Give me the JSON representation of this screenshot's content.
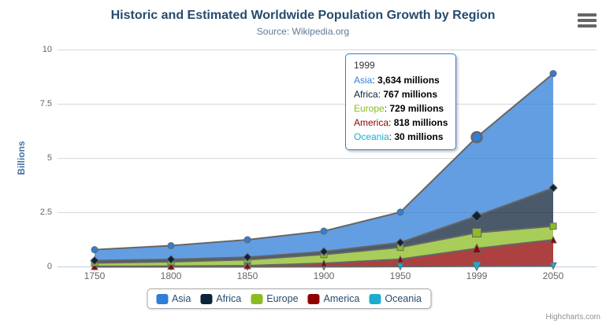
{
  "header": {
    "title": "Historic and Estimated Worldwide Population Growth by Region",
    "subtitle": "Source: Wikipedia.org"
  },
  "palette": {
    "asia": "#2F7ED8",
    "africa": "#0D233A",
    "europe": "#8BBC21",
    "america": "#910000",
    "oceania": "#1AADCE",
    "series_line": "#666666",
    "grid_line": "#D8D8D8",
    "axis_line": "#C0D0E0",
    "title_color": "#274B6D",
    "subtitle_color": "#5D7B96",
    "yaxis_title_color": "#4572A7"
  },
  "yaxis": {
    "title": "Billions",
    "labels": [
      "10",
      "7.5",
      "5",
      "2.5",
      "0"
    ]
  },
  "xaxis": {
    "labels": [
      "1750",
      "1800",
      "1850",
      "1900",
      "1950",
      "1999",
      "2050"
    ]
  },
  "legend": {
    "items": [
      {
        "label": "Asia",
        "color": "#2F7ED8"
      },
      {
        "label": "Africa",
        "color": "#0D233A"
      },
      {
        "label": "Europe",
        "color": "#8BBC21"
      },
      {
        "label": "America",
        "color": "#910000"
      },
      {
        "label": "Oceania",
        "color": "#1AADCE"
      }
    ]
  },
  "tooltip": {
    "header": "1999",
    "sep": ": ",
    "border_color": "#2F7ED8",
    "rows": [
      {
        "name": "Asia",
        "color": "#2F7ED8",
        "value": "3,634 millions"
      },
      {
        "name": "Africa",
        "color": "#0D233A",
        "value": "767 millions"
      },
      {
        "name": "Europe",
        "color": "#8BBC21",
        "value": "729 millions"
      },
      {
        "name": "America",
        "color": "#910000",
        "value": "818 millions"
      },
      {
        "name": "Oceania",
        "color": "#1AADCE",
        "value": "30 millions"
      }
    ]
  },
  "credits": {
    "label": "Highcharts.com"
  },
  "chart_data": {
    "type": "area",
    "stacking": "normal",
    "title": "Historic and Estimated Worldwide Population Growth by Region",
    "subtitle": "Source: Wikipedia.org",
    "categories": [
      "1750",
      "1800",
      "1850",
      "1900",
      "1950",
      "1999",
      "2050"
    ],
    "value_unit": "millions",
    "ylabel": "Billions",
    "ylim": [
      0,
      10
    ],
    "yticks": [
      0,
      2.5,
      5,
      7.5,
      10
    ],
    "grid": "horizontal",
    "legend_position": "bottom",
    "fill_opacity": 0.75,
    "series": [
      {
        "name": "Asia",
        "color": "#2F7ED8",
        "marker": "circle",
        "values": [
          502,
          635,
          809,
          947,
          1402,
          3634,
          5268
        ]
      },
      {
        "name": "Africa",
        "color": "#0D233A",
        "marker": "diamond",
        "values": [
          106,
          107,
          111,
          133,
          221,
          767,
          1766
        ]
      },
      {
        "name": "Europe",
        "color": "#8BBC21",
        "marker": "square",
        "values": [
          163,
          203,
          276,
          408,
          547,
          729,
          628
        ]
      },
      {
        "name": "America",
        "color": "#910000",
        "marker": "triangle",
        "values": [
          18,
          31,
          54,
          156,
          339,
          818,
          1201
        ]
      },
      {
        "name": "Oceania",
        "color": "#1AADCE",
        "marker": "triangle-down",
        "values": [
          2,
          2,
          2,
          6,
          13,
          30,
          46
        ]
      }
    ],
    "stack_order_bottom_to_top": [
      "Oceania",
      "America",
      "Europe",
      "Africa",
      "Asia"
    ],
    "stack_totals_billions": [
      0.791,
      0.978,
      1.252,
      1.65,
      2.522,
      5.978,
      8.909
    ],
    "hover": {
      "category": "1999",
      "category_index": 5,
      "series": "Asia"
    }
  }
}
